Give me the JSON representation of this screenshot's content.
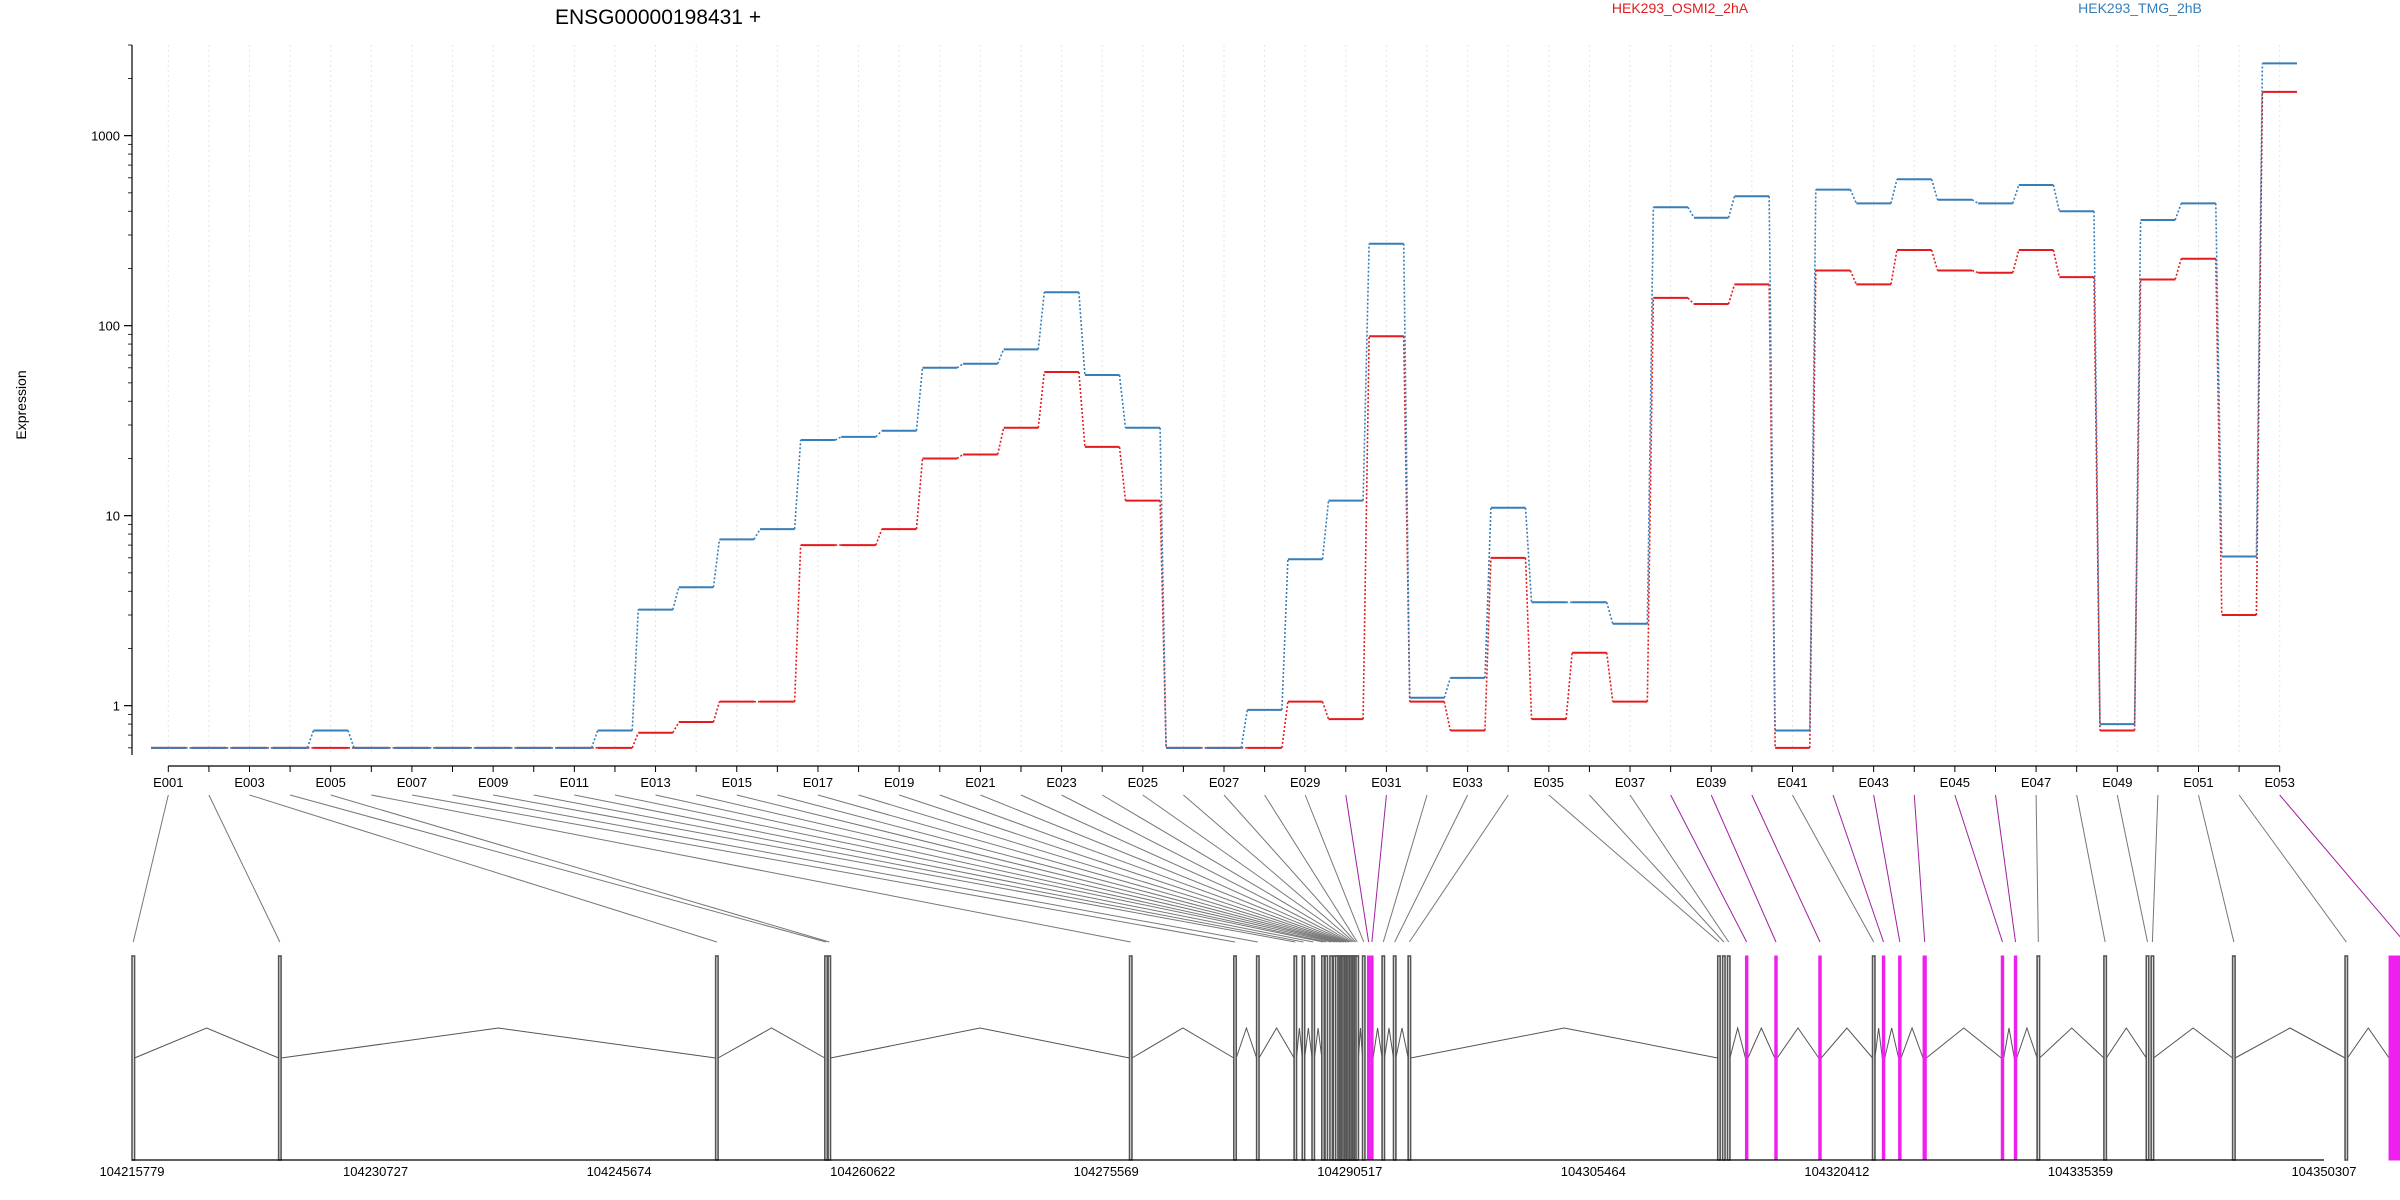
{
  "chart_data": {
    "type": "line",
    "title": "ENSG00000198431 +",
    "ylabel": "Expression",
    "y_scale": "log",
    "y_ticks": [
      1,
      10,
      100,
      1000
    ],
    "ylim": [
      0.55,
      3000
    ],
    "grid": "vertical dotted per exon",
    "legend_position": "top",
    "categories": [
      "E001",
      "E002",
      "E003",
      "E004",
      "E005",
      "E006",
      "E007",
      "E008",
      "E009",
      "E010",
      "E011",
      "E012",
      "E013",
      "E014",
      "E015",
      "E016",
      "E017",
      "E018",
      "E019",
      "E020",
      "E021",
      "E022",
      "E023",
      "E024",
      "E025",
      "E026",
      "E027",
      "E028",
      "E029",
      "E030",
      "E031",
      "E032",
      "E033",
      "E034",
      "E035",
      "E036",
      "E037",
      "E038",
      "E039",
      "E040",
      "E041",
      "E042",
      "E043",
      "E044",
      "E045",
      "E046",
      "E047",
      "E048",
      "E049",
      "E050",
      "E051",
      "E052",
      "E053"
    ],
    "x_tick_labels": [
      "E001",
      "E003",
      "E005",
      "E007",
      "E009",
      "E011",
      "E013",
      "E015",
      "E017",
      "E019",
      "E021",
      "E023",
      "E025",
      "E027",
      "E029",
      "E031",
      "E033",
      "E035",
      "E037",
      "E039",
      "E041",
      "E043",
      "E045",
      "E047",
      "E049",
      "E051",
      "E053"
    ],
    "series": [
      {
        "name": "HEK293_OSMI2_2hA",
        "color": "#e41a1c",
        "values": [
          0.6,
          0.6,
          0.6,
          0.6,
          0.6,
          0.6,
          0.6,
          0.6,
          0.6,
          0.6,
          0.6,
          0.6,
          0.72,
          0.82,
          1.05,
          1.05,
          7,
          7,
          8.5,
          20,
          21,
          29,
          57,
          23,
          12,
          0.6,
          0.6,
          0.6,
          1.05,
          0.85,
          88,
          1.05,
          0.74,
          6,
          0.85,
          1.9,
          1.05,
          140,
          130,
          165,
          0.6,
          195,
          165,
          250,
          195,
          190,
          250,
          180,
          0.74,
          175,
          225,
          3.0,
          1700
        ]
      },
      {
        "name": "HEK293_TMG_2hB",
        "color": "#377eb8",
        "values": [
          0.6,
          0.6,
          0.6,
          0.6,
          0.74,
          0.6,
          0.6,
          0.6,
          0.6,
          0.6,
          0.6,
          0.74,
          3.2,
          4.2,
          7.5,
          8.5,
          25,
          26,
          28,
          60,
          63,
          75,
          150,
          55,
          29,
          0.6,
          0.6,
          0.95,
          5.9,
          12,
          270,
          1.1,
          1.4,
          11,
          3.5,
          3.5,
          2.7,
          420,
          370,
          480,
          0.74,
          520,
          440,
          590,
          460,
          440,
          550,
          400,
          0.8,
          360,
          440,
          6.1,
          2400
        ]
      }
    ],
    "gene_model": {
      "coordinate_labels": [
        "104215779",
        "104230727",
        "104245674",
        "104260622",
        "104275569",
        "104290517",
        "104305464",
        "104320412",
        "104335359",
        "104350307"
      ],
      "coordinate_range": [
        104215779,
        104350307
      ],
      "exons": [
        {
          "id": "E001",
          "start": 104215779,
          "end": 104215935,
          "sig": false
        },
        {
          "id": "E002",
          "start": 104224780,
          "end": 104224885,
          "sig": false
        },
        {
          "id": "E003",
          "start": 104251600,
          "end": 104251710,
          "sig": false
        },
        {
          "id": "E004",
          "start": 104258300,
          "end": 104258380,
          "sig": false
        },
        {
          "id": "E005",
          "start": 104258500,
          "end": 104258580,
          "sig": false
        },
        {
          "id": "E006",
          "start": 104277000,
          "end": 104277100,
          "sig": false
        },
        {
          "id": "E007",
          "start": 104283400,
          "end": 104283500,
          "sig": false
        },
        {
          "id": "E008",
          "start": 104284800,
          "end": 104284900,
          "sig": false
        },
        {
          "id": "E009",
          "start": 104287100,
          "end": 104287200,
          "sig": false
        },
        {
          "id": "E010",
          "start": 104287600,
          "end": 104287700,
          "sig": false
        },
        {
          "id": "E011",
          "start": 104288200,
          "end": 104288300,
          "sig": false
        },
        {
          "id": "E012",
          "start": 104288800,
          "end": 104288900,
          "sig": false
        },
        {
          "id": "E013",
          "start": 104289000,
          "end": 104289100,
          "sig": false
        },
        {
          "id": "E014",
          "start": 104289300,
          "end": 104289400,
          "sig": false
        },
        {
          "id": "E015",
          "start": 104289500,
          "end": 104289600,
          "sig": false
        },
        {
          "id": "E016",
          "start": 104289650,
          "end": 104289700,
          "sig": false
        },
        {
          "id": "E017",
          "start": 104289800,
          "end": 104289850,
          "sig": false
        },
        {
          "id": "E018",
          "start": 104289900,
          "end": 104289950,
          "sig": false
        },
        {
          "id": "E019",
          "start": 104290000,
          "end": 104290050,
          "sig": false
        },
        {
          "id": "E020",
          "start": 104290100,
          "end": 104290150,
          "sig": false
        },
        {
          "id": "E021",
          "start": 104290200,
          "end": 104290250,
          "sig": false
        },
        {
          "id": "E022",
          "start": 104290300,
          "end": 104290350,
          "sig": false
        },
        {
          "id": "E023",
          "start": 104290400,
          "end": 104290450,
          "sig": false
        },
        {
          "id": "E024",
          "start": 104290500,
          "end": 104290550,
          "sig": false
        },
        {
          "id": "E025",
          "start": 104290600,
          "end": 104290650,
          "sig": false
        },
        {
          "id": "E026",
          "start": 104290700,
          "end": 104290750,
          "sig": false
        },
        {
          "id": "E027",
          "start": 104290800,
          "end": 104290850,
          "sig": false
        },
        {
          "id": "E028",
          "start": 104290900,
          "end": 104290950,
          "sig": false
        },
        {
          "id": "E029",
          "start": 104291300,
          "end": 104291400,
          "sig": false
        },
        {
          "id": "E030",
          "start": 104291600,
          "end": 104291700,
          "sig": true
        },
        {
          "id": "E031",
          "start": 104291800,
          "end": 104291900,
          "sig": true
        },
        {
          "id": "E032",
          "start": 104292500,
          "end": 104292600,
          "sig": false
        },
        {
          "id": "E033",
          "start": 104293200,
          "end": 104293300,
          "sig": false
        },
        {
          "id": "E034",
          "start": 104294100,
          "end": 104294200,
          "sig": false
        },
        {
          "id": "E035",
          "start": 104313100,
          "end": 104313200,
          "sig": false
        },
        {
          "id": "E036",
          "start": 104313400,
          "end": 104313500,
          "sig": false
        },
        {
          "id": "E037",
          "start": 104313700,
          "end": 104313800,
          "sig": false
        },
        {
          "id": "E038",
          "start": 104314800,
          "end": 104314950,
          "sig": true
        },
        {
          "id": "E039",
          "start": 104316600,
          "end": 104316750,
          "sig": true
        },
        {
          "id": "E040",
          "start": 104319300,
          "end": 104319450,
          "sig": true
        },
        {
          "id": "E041",
          "start": 104322600,
          "end": 104322700,
          "sig": false
        },
        {
          "id": "E042",
          "start": 104323200,
          "end": 104323350,
          "sig": true
        },
        {
          "id": "E043",
          "start": 104324200,
          "end": 104324350,
          "sig": true
        },
        {
          "id": "E044",
          "start": 104325700,
          "end": 104325900,
          "sig": true
        },
        {
          "id": "E045",
          "start": 104330500,
          "end": 104330650,
          "sig": true
        },
        {
          "id": "E046",
          "start": 104331300,
          "end": 104331450,
          "sig": true
        },
        {
          "id": "E047",
          "start": 104332700,
          "end": 104332850,
          "sig": false
        },
        {
          "id": "E048",
          "start": 104336800,
          "end": 104336950,
          "sig": false
        },
        {
          "id": "E049",
          "start": 104339400,
          "end": 104339550,
          "sig": false
        },
        {
          "id": "E050",
          "start": 104339700,
          "end": 104339850,
          "sig": false
        },
        {
          "id": "E051",
          "start": 104344700,
          "end": 104344850,
          "sig": false
        },
        {
          "id": "E052",
          "start": 104351600,
          "end": 104351700,
          "sig": false
        },
        {
          "id": "E053",
          "start": 104354300,
          "end": 104356200,
          "sig": true
        }
      ],
      "colors": {
        "exon": "#555555",
        "significant": "#ee20ee",
        "link_normal": "#777777",
        "link_sig": "#a020a0"
      }
    }
  }
}
